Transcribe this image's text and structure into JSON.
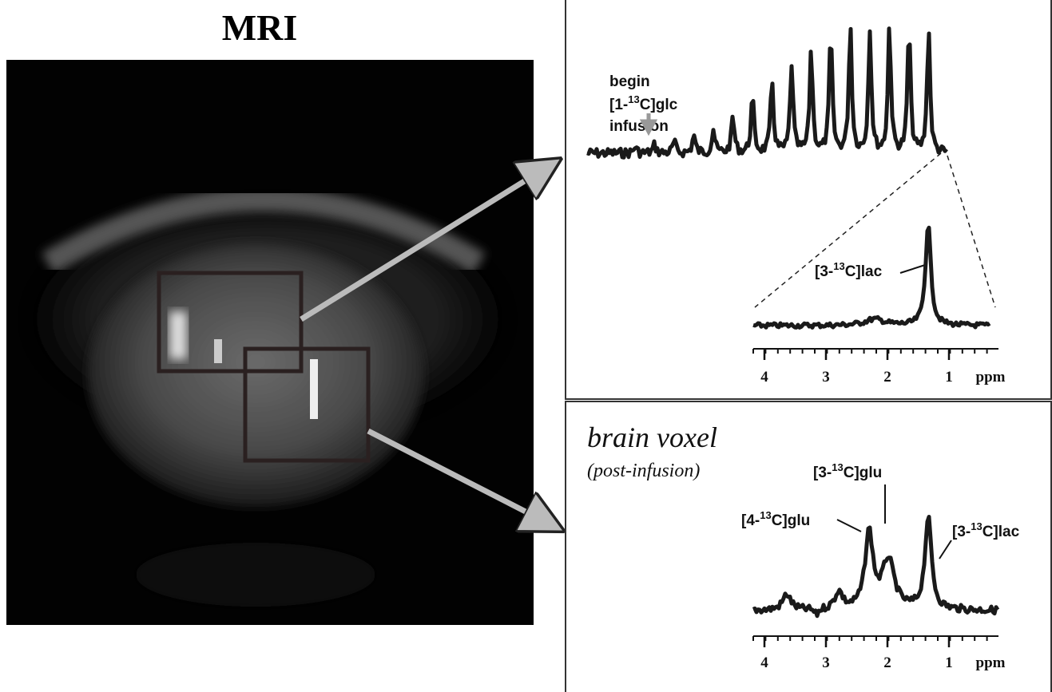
{
  "title": "MRI",
  "top_panel": {
    "annotation": {
      "line1": "begin",
      "label": {
        "prefix": "[1-",
        "sup": "13",
        "suffix": "C]glc"
      },
      "line3": "infusion"
    },
    "peak_label": {
      "prefix": "[3-",
      "sup": "13",
      "suffix": "C]lac"
    },
    "axis": {
      "ticks": [
        4,
        3,
        2,
        1
      ],
      "unit": "ppm"
    }
  },
  "bottom_panel": {
    "title": "brain voxel",
    "subtitle": "(post-infusion)",
    "peak_labels": [
      {
        "prefix": "[3-",
        "sup": "13",
        "suffix": "C]glu"
      },
      {
        "prefix": "[4-",
        "sup": "13",
        "suffix": "C]glu"
      },
      {
        "prefix": "[3-",
        "sup": "13",
        "suffix": "C]lac"
      }
    ],
    "axis": {
      "ticks": [
        4,
        3,
        2,
        1
      ],
      "unit": "ppm"
    }
  }
}
